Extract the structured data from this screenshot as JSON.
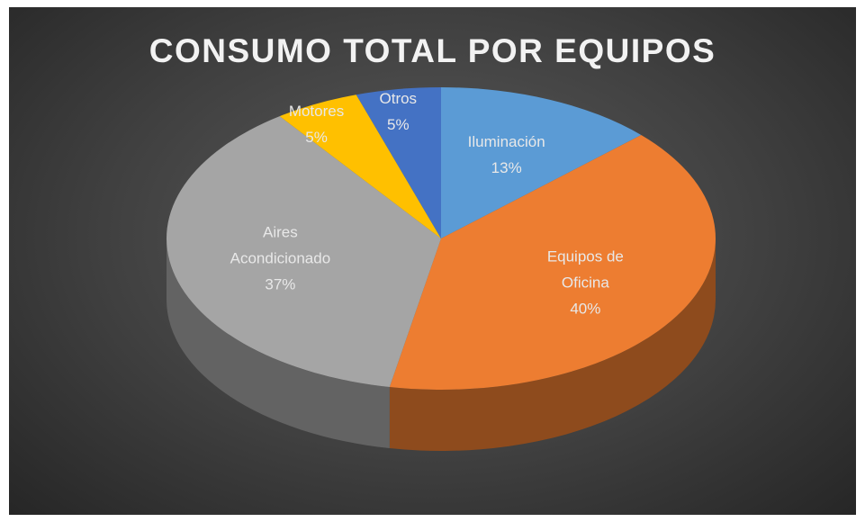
{
  "chart_data": {
    "type": "pie",
    "title": "CONSUMO TOTAL POR EQUIPOS",
    "categories": [
      "Iluminación",
      "Equipos de Oficina",
      "Aires Acondicionado",
      "Motores",
      "Otros"
    ],
    "values": [
      13,
      40,
      37,
      5,
      5
    ],
    "value_labels": [
      "13%",
      "40%",
      "37%",
      "5%",
      "5%"
    ],
    "colors": [
      "#5b9bd5",
      "#ed7d31",
      "#a5a5a5",
      "#ffc000",
      "#4472c4"
    ]
  }
}
